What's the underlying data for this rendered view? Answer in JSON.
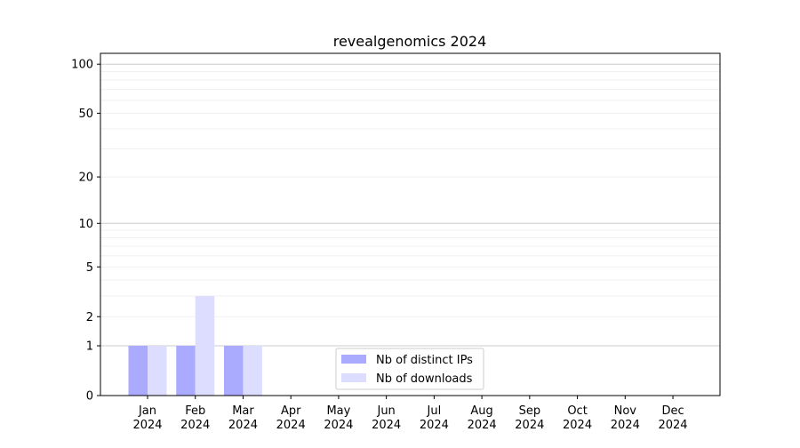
{
  "chart_data": {
    "type": "bar",
    "title": "revealgenomics 2024",
    "xlabel": "",
    "ylabel": "",
    "yscale": "log(1+y)",
    "ylim": [
      0,
      116
    ],
    "yticks": [
      0,
      1,
      2,
      5,
      10,
      20,
      50,
      100
    ],
    "ytick_labels": [
      "0",
      "1",
      "2",
      "5",
      "10",
      "20",
      "50",
      "100"
    ],
    "grid": true,
    "legend_position": "lower-center",
    "categories": [
      "Jan\n2024",
      "Feb\n2024",
      "Mar\n2024",
      "Apr\n2024",
      "May\n2024",
      "Jun\n2024",
      "Jul\n2024",
      "Aug\n2024",
      "Sep\n2024",
      "Oct\n2024",
      "Nov\n2024",
      "Dec\n2024"
    ],
    "series": [
      {
        "name": "Nb of distinct IPs",
        "color": "#aaaaff",
        "values": [
          1,
          1,
          1,
          0,
          0,
          0,
          0,
          0,
          0,
          0,
          0,
          0
        ]
      },
      {
        "name": "Nb of downloads",
        "color": "#ddddff",
        "values": [
          1,
          3,
          1,
          0,
          0,
          0,
          0,
          0,
          0,
          0,
          0,
          0
        ]
      }
    ]
  }
}
